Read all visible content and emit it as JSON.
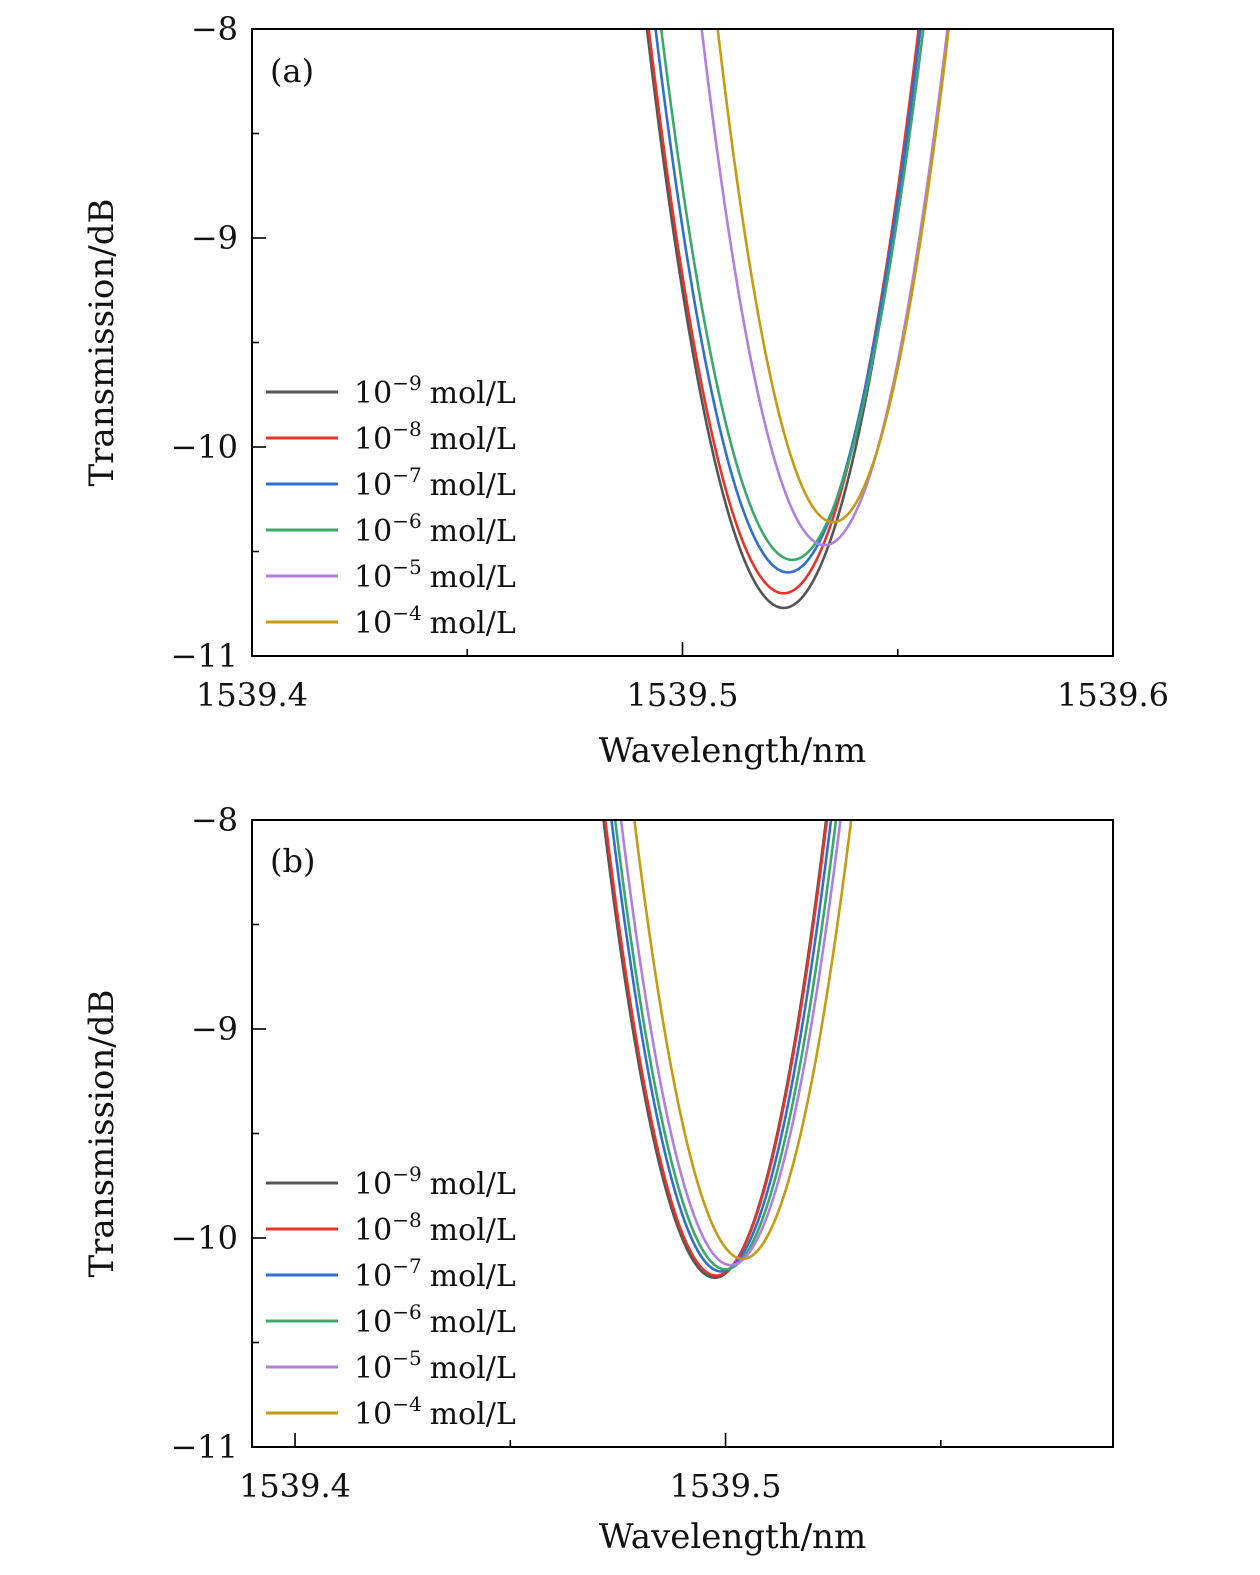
{
  "chart_data": [
    {
      "type": "line",
      "panel_label": "(a)",
      "xlabel": "Wavelength/nm",
      "ylabel": "Transmission/dB",
      "xlim": [
        1539.4,
        1539.6
      ],
      "ylim": [
        -11,
        -8
      ],
      "xticks": [
        1539.4,
        1539.5,
        1539.6
      ],
      "xtick_labels": [
        "1539.4",
        "1539.5",
        "1539.6"
      ],
      "yticks": [
        -8,
        -9,
        -10,
        -11
      ],
      "ytick_labels": [
        "−8",
        "−9",
        "−10",
        "−11"
      ],
      "grid": false,
      "legend_position": "lower-left",
      "series": [
        {
          "name": "10−9 mol/L",
          "base": "10",
          "exponent": "−9",
          "unit": "mol/L",
          "color": "#555555",
          "center": 1539.5235,
          "min": -10.77,
          "k": 0.000364
        },
        {
          "name": "10−8 mol/L",
          "base": "10",
          "exponent": "−8",
          "unit": "mol/L",
          "color": "#e8332a",
          "center": 1539.5235,
          "min": -10.7,
          "k": 0.000364
        },
        {
          "name": "10−7 mol/L",
          "base": "10",
          "exponent": "−7",
          "unit": "mol/L",
          "color": "#2e6fd1",
          "center": 1539.5245,
          "min": -10.6,
          "k": 0.000364
        },
        {
          "name": "10−6 mol/L",
          "base": "10",
          "exponent": "−6",
          "unit": "mol/L",
          "color": "#3aa86a",
          "center": 1539.5255,
          "min": -10.54,
          "k": 0.000365
        },
        {
          "name": "10−5 mol/L",
          "base": "10",
          "exponent": "−5",
          "unit": "mol/L",
          "color": "#b07fe0",
          "center": 1539.533,
          "min": -10.47,
          "k": 0.00033
        },
        {
          "name": "10−4 mol/L",
          "base": "10",
          "exponent": "−4",
          "unit": "mol/L",
          "color": "#c79a14",
          "center": 1539.535,
          "min": -10.36,
          "k": 0.000305
        }
      ]
    },
    {
      "type": "line",
      "panel_label": "(b)",
      "xlabel": "Wavelength/nm",
      "ylabel": "Transmission/dB",
      "xlim": [
        1539.39,
        1539.59
      ],
      "ylim": [
        -11,
        -8
      ],
      "xticks": [
        1539.4,
        1539.5
      ],
      "xtick_labels": [
        "1539.4",
        "1539.5"
      ],
      "yticks": [
        -8,
        -9,
        -10,
        -11
      ],
      "ytick_labels": [
        "−8",
        "−9",
        "−10",
        "−11"
      ],
      "grid": false,
      "legend_position": "lower-left",
      "series": [
        {
          "name": "10−9 mol/L",
          "base": "10",
          "exponent": "−9",
          "unit": "mol/L",
          "color": "#555555",
          "center": 1539.4975,
          "min": -10.19,
          "k": 0.000305
        },
        {
          "name": "10−8 mol/L",
          "base": "10",
          "exponent": "−8",
          "unit": "mol/L",
          "color": "#e8332a",
          "center": 1539.4978,
          "min": -10.18,
          "k": 0.000304
        },
        {
          "name": "10−7 mol/L",
          "base": "10",
          "exponent": "−7",
          "unit": "mol/L",
          "color": "#2e6fd1",
          "center": 1539.499,
          "min": -10.16,
          "k": 0.000301
        },
        {
          "name": "10−6 mol/L",
          "base": "10",
          "exponent": "−6",
          "unit": "mol/L",
          "color": "#3aa86a",
          "center": 1539.5,
          "min": -10.15,
          "k": 0.000306
        },
        {
          "name": "10−5 mol/L",
          "base": "10",
          "exponent": "−5",
          "unit": "mol/L",
          "color": "#b07fe0",
          "center": 1539.5012,
          "min": -10.13,
          "k": 0.000305
        },
        {
          "name": "10−4 mol/L",
          "base": "10",
          "exponent": "−4",
          "unit": "mol/L",
          "color": "#c79a14",
          "center": 1539.504,
          "min": -10.1,
          "k": 0.000302
        }
      ]
    }
  ]
}
